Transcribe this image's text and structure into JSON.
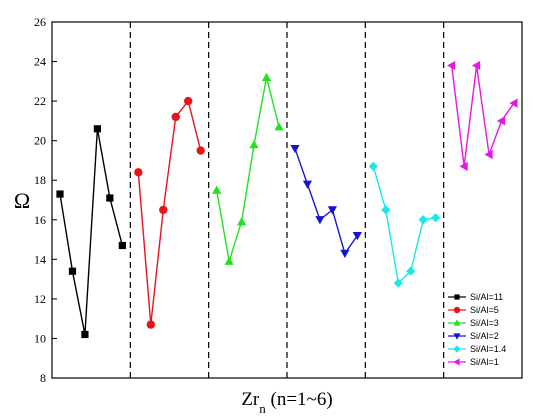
{
  "chart_data": {
    "type": "line",
    "title": "",
    "xlabel_main": "Zr",
    "xlabel_sub": "n",
    "xlabel_suffix": " (n=1~6)",
    "ylabel": "Ω",
    "ylim": [
      8,
      26
    ],
    "yticks": [
      8,
      10,
      12,
      14,
      16,
      18,
      20,
      22,
      24,
      26
    ],
    "grid": false,
    "legend_position": "bottom-right",
    "group_separators": [
      1,
      2,
      3,
      4,
      5
    ],
    "series": [
      {
        "name": "Si/Al=11",
        "color": "#000000",
        "marker": "square",
        "group": 0,
        "values": [
          17.3,
          13.4,
          10.2,
          20.6,
          17.1,
          14.7
        ]
      },
      {
        "name": "Si/Al=5",
        "color": "#e8141b",
        "marker": "circle",
        "group": 1,
        "values": [
          18.4,
          10.7,
          16.5,
          21.2,
          22.0,
          19.5
        ]
      },
      {
        "name": "Si/Al=3",
        "color": "#1fe31f",
        "marker": "triangle-up",
        "group": 2,
        "values": [
          17.5,
          13.9,
          15.9,
          19.8,
          23.2,
          20.7
        ]
      },
      {
        "name": "Si/Al=2",
        "color": "#1414d2",
        "marker": "triangle-down",
        "group": 3,
        "values": [
          19.6,
          17.8,
          16.0,
          16.5,
          14.3,
          15.2
        ]
      },
      {
        "name": "Si/Al=1.4",
        "color": "#17e8e8",
        "marker": "diamond",
        "group": 4,
        "values": [
          18.7,
          16.5,
          12.8,
          13.4,
          16.0,
          16.1
        ]
      },
      {
        "name": "Si/Al=1",
        "color": "#e617e6",
        "marker": "triangle-left",
        "group": 5,
        "values": [
          23.8,
          18.7,
          23.8,
          19.3,
          21.0,
          21.9
        ]
      }
    ]
  }
}
